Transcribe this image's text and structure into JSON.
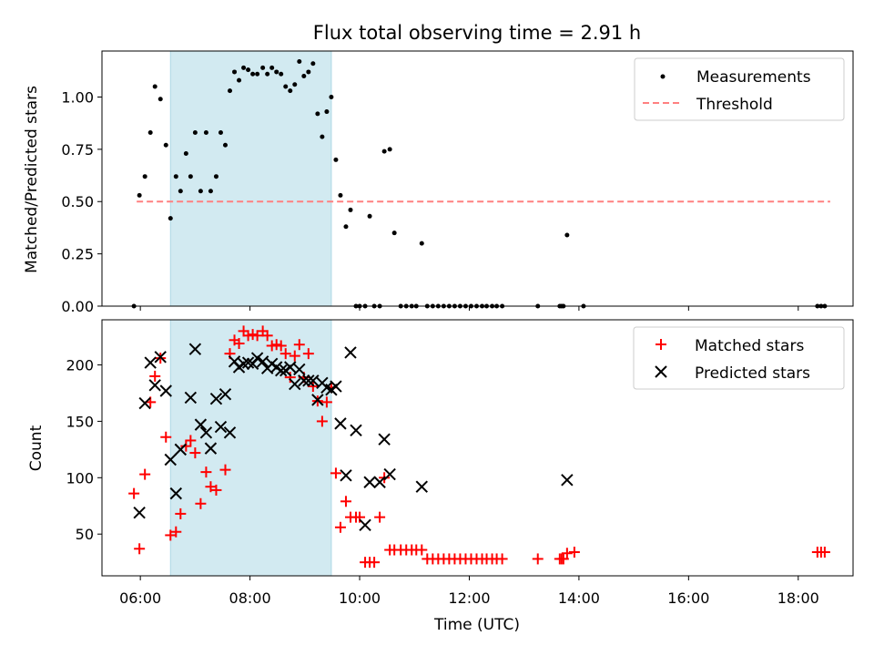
{
  "figure": {
    "title": "Flux total observing time = 2.91 h",
    "xlabel": "Time (UTC)"
  },
  "colors": {
    "measurements": "#000000",
    "threshold": "#ff8080",
    "matched": "#ff0000",
    "predicted": "#000000",
    "shade": "#add8e6"
  },
  "chart_data": [
    {
      "type": "scatter",
      "ylabel": "Matched/Predicted stars",
      "x_unit": "hours UTC",
      "xlim": [
        5.3,
        19.0
      ],
      "ylim": [
        0,
        1.22
      ],
      "yticks": [
        0.0,
        0.25,
        0.5,
        0.75,
        1.0
      ],
      "ytick_labels": [
        "0.00",
        "0.25",
        "0.50",
        "0.75",
        "1.00"
      ],
      "shaded_interval": [
        "06:33",
        "09:29"
      ],
      "grid": false,
      "legend_position": "upper right",
      "legend": [
        "Measurements",
        "Threshold"
      ],
      "threshold": {
        "name": "Threshold",
        "y": 0.5,
        "x_range": [
          "05:56",
          "18:35"
        ],
        "style": "dashed"
      },
      "series": [
        {
          "name": "Measurements",
          "marker": "dot",
          "points": [
            [
              "05:53",
              0.0
            ],
            [
              "05:59",
              0.53
            ],
            [
              "06:05",
              0.62
            ],
            [
              "06:11",
              0.83
            ],
            [
              "06:16",
              1.05
            ],
            [
              "06:22",
              0.99
            ],
            [
              "06:28",
              0.77
            ],
            [
              "06:33",
              0.42
            ],
            [
              "06:39",
              0.62
            ],
            [
              "06:44",
              0.55
            ],
            [
              "06:50",
              0.73
            ],
            [
              "06:55",
              0.62
            ],
            [
              "07:00",
              0.83
            ],
            [
              "07:06",
              0.55
            ],
            [
              "07:12",
              0.83
            ],
            [
              "07:17",
              0.55
            ],
            [
              "07:23",
              0.62
            ],
            [
              "07:28",
              0.83
            ],
            [
              "07:33",
              0.77
            ],
            [
              "07:38",
              1.03
            ],
            [
              "07:43",
              1.12
            ],
            [
              "07:48",
              1.08
            ],
            [
              "07:53",
              1.14
            ],
            [
              "07:58",
              1.13
            ],
            [
              "08:03",
              1.11
            ],
            [
              "08:08",
              1.11
            ],
            [
              "08:14",
              1.14
            ],
            [
              "08:19",
              1.11
            ],
            [
              "08:24",
              1.14
            ],
            [
              "08:29",
              1.12
            ],
            [
              "08:34",
              1.11
            ],
            [
              "08:39",
              1.05
            ],
            [
              "08:44",
              1.03
            ],
            [
              "08:49",
              1.06
            ],
            [
              "08:54",
              1.17
            ],
            [
              "08:59",
              1.1
            ],
            [
              "09:04",
              1.12
            ],
            [
              "09:09",
              1.16
            ],
            [
              "09:14",
              0.92
            ],
            [
              "09:19",
              0.81
            ],
            [
              "09:24",
              0.93
            ],
            [
              "09:29",
              1.0
            ],
            [
              "09:34",
              0.7
            ],
            [
              "09:39",
              0.53
            ],
            [
              "09:45",
              0.38
            ],
            [
              "09:50",
              0.46
            ],
            [
              "09:56",
              0.0
            ],
            [
              "10:00",
              0.0
            ],
            [
              "10:06",
              0.0
            ],
            [
              "10:11",
              0.43
            ],
            [
              "10:16",
              0.0
            ],
            [
              "10:22",
              0.0
            ],
            [
              "10:27",
              0.74
            ],
            [
              "10:33",
              0.75
            ],
            [
              "10:38",
              0.35
            ],
            [
              "10:45",
              0.0
            ],
            [
              "10:51",
              0.0
            ],
            [
              "10:57",
              0.0
            ],
            [
              "11:02",
              0.0
            ],
            [
              "11:08",
              0.3
            ],
            [
              "11:14",
              0.0
            ],
            [
              "11:20",
              0.0
            ],
            [
              "11:26",
              0.0
            ],
            [
              "11:32",
              0.0
            ],
            [
              "11:38",
              0.0
            ],
            [
              "11:44",
              0.0
            ],
            [
              "11:50",
              0.0
            ],
            [
              "11:56",
              0.0
            ],
            [
              "12:02",
              0.0
            ],
            [
              "12:08",
              0.0
            ],
            [
              "12:14",
              0.0
            ],
            [
              "12:19",
              0.0
            ],
            [
              "12:25",
              0.0
            ],
            [
              "12:30",
              0.0
            ],
            [
              "12:36",
              0.0
            ],
            [
              "13:15",
              0.0
            ],
            [
              "13:39",
              0.0
            ],
            [
              "13:41",
              0.0
            ],
            [
              "13:43",
              0.0
            ],
            [
              "13:47",
              0.34
            ],
            [
              "14:05",
              0.0
            ],
            [
              "18:21",
              0.0
            ],
            [
              "18:25",
              0.0
            ],
            [
              "18:29",
              0.0
            ]
          ]
        }
      ]
    },
    {
      "type": "scatter",
      "ylabel": "Count",
      "xlabel": "Time (UTC)",
      "x_unit": "hours UTC",
      "xlim": [
        5.3,
        19.0
      ],
      "ylim": [
        13,
        240
      ],
      "yticks": [
        50,
        100,
        150,
        200
      ],
      "ytick_labels": [
        "50",
        "100",
        "150",
        "200"
      ],
      "xticks": [
        "06:00",
        "08:00",
        "10:00",
        "12:00",
        "14:00",
        "16:00",
        "18:00"
      ],
      "shaded_interval": [
        "06:33",
        "09:29"
      ],
      "grid": false,
      "legend_position": "upper right",
      "legend": [
        "Matched stars",
        "Predicted stars"
      ],
      "series": [
        {
          "name": "Matched stars",
          "marker": "plus",
          "points": [
            [
              "05:53",
              86
            ],
            [
              "05:59",
              37
            ],
            [
              "06:05",
              103
            ],
            [
              "06:11",
              167
            ],
            [
              "06:16",
              190
            ],
            [
              "06:22",
              206
            ],
            [
              "06:28",
              136
            ],
            [
              "06:33",
              49
            ],
            [
              "06:39",
              52
            ],
            [
              "06:44",
              68
            ],
            [
              "06:50",
              128
            ],
            [
              "06:55",
              133
            ],
            [
              "07:00",
              122
            ],
            [
              "07:06",
              77
            ],
            [
              "07:12",
              105
            ],
            [
              "07:17",
              92
            ],
            [
              "07:23",
              89
            ],
            [
              "07:33",
              107
            ],
            [
              "07:38",
              210
            ],
            [
              "07:43",
              222
            ],
            [
              "07:48",
              219
            ],
            [
              "07:53",
              230
            ],
            [
              "07:58",
              226
            ],
            [
              "08:03",
              227
            ],
            [
              "08:08",
              226
            ],
            [
              "08:14",
              230
            ],
            [
              "08:19",
              226
            ],
            [
              "08:24",
              217
            ],
            [
              "08:29",
              218
            ],
            [
              "08:34",
              217
            ],
            [
              "08:39",
              210
            ],
            [
              "08:44",
              189
            ],
            [
              "08:49",
              208
            ],
            [
              "08:54",
              218
            ],
            [
              "08:59",
              189
            ],
            [
              "09:04",
              210
            ],
            [
              "09:09",
              181
            ],
            [
              "09:14",
              168
            ],
            [
              "09:19",
              150
            ],
            [
              "09:24",
              167
            ],
            [
              "09:29",
              180
            ],
            [
              "09:34",
              104
            ],
            [
              "09:39",
              56
            ],
            [
              "09:45",
              79
            ],
            [
              "09:50",
              65
            ],
            [
              "09:56",
              65
            ],
            [
              "10:00",
              65
            ],
            [
              "10:06",
              25
            ],
            [
              "10:11",
              25
            ],
            [
              "10:16",
              25
            ],
            [
              "10:22",
              65
            ],
            [
              "10:27",
              100
            ],
            [
              "10:33",
              36
            ],
            [
              "10:38",
              36
            ],
            [
              "10:45",
              36
            ],
            [
              "10:51",
              36
            ],
            [
              "10:57",
              36
            ],
            [
              "11:02",
              36
            ],
            [
              "11:08",
              36
            ],
            [
              "11:14",
              28
            ],
            [
              "11:20",
              28
            ],
            [
              "11:26",
              28
            ],
            [
              "11:32",
              28
            ],
            [
              "11:38",
              28
            ],
            [
              "11:44",
              28
            ],
            [
              "11:50",
              28
            ],
            [
              "11:56",
              28
            ],
            [
              "12:02",
              28
            ],
            [
              "12:08",
              28
            ],
            [
              "12:14",
              28
            ],
            [
              "12:19",
              28
            ],
            [
              "12:25",
              28
            ],
            [
              "12:30",
              28
            ],
            [
              "12:36",
              28
            ],
            [
              "13:15",
              28
            ],
            [
              "13:39",
              28
            ],
            [
              "13:41",
              28
            ],
            [
              "13:43",
              28
            ],
            [
              "13:47",
              33
            ],
            [
              "13:55",
              34
            ],
            [
              "18:21",
              34
            ],
            [
              "18:25",
              34
            ],
            [
              "18:29",
              34
            ]
          ]
        },
        {
          "name": "Predicted stars",
          "marker": "x",
          "points": [
            [
              "05:59",
              69
            ],
            [
              "06:05",
              166
            ],
            [
              "06:11",
              202
            ],
            [
              "06:16",
              182
            ],
            [
              "06:22",
              207
            ],
            [
              "06:28",
              177
            ],
            [
              "06:33",
              116
            ],
            [
              "06:39",
              86
            ],
            [
              "06:44",
              125
            ],
            [
              "06:55",
              171
            ],
            [
              "07:00",
              214
            ],
            [
              "07:06",
              147
            ],
            [
              "07:12",
              140
            ],
            [
              "07:17",
              126
            ],
            [
              "07:23",
              170
            ],
            [
              "07:28",
              145
            ],
            [
              "07:33",
              174
            ],
            [
              "07:38",
              140
            ],
            [
              "07:43",
              203
            ],
            [
              "07:48",
              198
            ],
            [
              "07:53",
              201
            ],
            [
              "07:58",
              202
            ],
            [
              "08:03",
              201
            ],
            [
              "08:08",
              206
            ],
            [
              "08:14",
              203
            ],
            [
              "08:19",
              197
            ],
            [
              "08:24",
              201
            ],
            [
              "08:29",
              198
            ],
            [
              "08:34",
              195
            ],
            [
              "08:39",
              195
            ],
            [
              "08:44",
              198
            ],
            [
              "08:49",
              183
            ],
            [
              "08:54",
              196
            ],
            [
              "08:59",
              186
            ],
            [
              "09:04",
              186
            ],
            [
              "09:09",
              186
            ],
            [
              "09:14",
              169
            ],
            [
              "09:19",
              184
            ],
            [
              "09:24",
              180
            ],
            [
              "09:29",
              178
            ],
            [
              "09:34",
              181
            ],
            [
              "09:39",
              148
            ],
            [
              "09:45",
              102
            ],
            [
              "09:50",
              211
            ],
            [
              "09:56",
              142
            ],
            [
              "10:06",
              58
            ],
            [
              "10:11",
              96
            ],
            [
              "10:22",
              96
            ],
            [
              "10:27",
              134
            ],
            [
              "10:33",
              103
            ],
            [
              "11:08",
              92
            ],
            [
              "13:47",
              98
            ]
          ]
        }
      ]
    }
  ]
}
